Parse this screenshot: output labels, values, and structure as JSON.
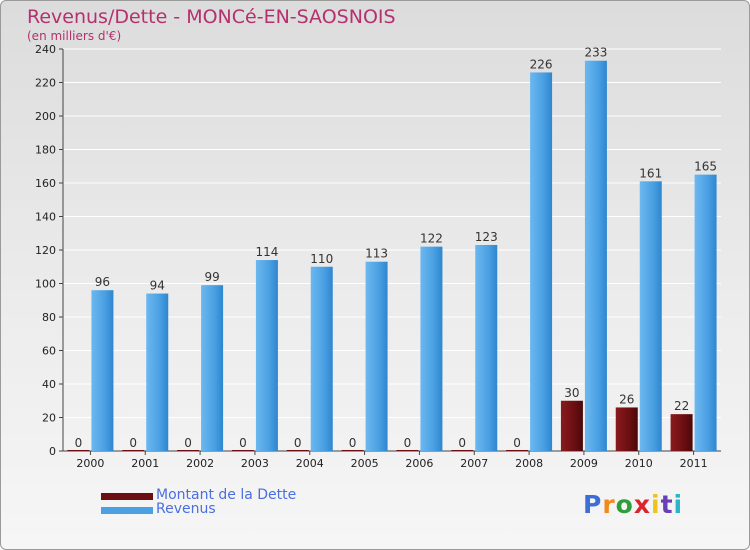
{
  "title": "Revenus/Dette - MONCé-EN-SAOSNOIS",
  "subtitle": "(en milliers d'€)",
  "legend": [
    {
      "label": "Montant de la Dette",
      "color": "#6b0f12"
    },
    {
      "label": "Revenus",
      "color": "#4aa0e2"
    }
  ],
  "logo": {
    "text": "Proxiti",
    "colors": [
      "#3b6fd6",
      "#f08a1c",
      "#2f9e3a",
      "#d9262c",
      "#f0c21c",
      "#6a3fb5",
      "#2bb5c9"
    ]
  },
  "colors": {
    "debt": "#6b0f12",
    "revenue": "#4aa0e2",
    "label_text": "#333333",
    "axis_text": "#222222",
    "grid": "#ffffff"
  },
  "chart_data": {
    "type": "bar",
    "categories": [
      "2000",
      "2001",
      "2002",
      "2003",
      "2004",
      "2005",
      "2006",
      "2007",
      "2008",
      "2009",
      "2010",
      "2011"
    ],
    "series": [
      {
        "name": "Montant de la Dette",
        "values": [
          0,
          0,
          0,
          0,
          0,
          0,
          0,
          0,
          0,
          30,
          26,
          22
        ]
      },
      {
        "name": "Revenus",
        "values": [
          96,
          94,
          99,
          114,
          110,
          113,
          122,
          123,
          226,
          233,
          161,
          165
        ]
      }
    ],
    "ylim": [
      0,
      240
    ],
    "yticks": [
      0,
      20,
      40,
      60,
      80,
      100,
      120,
      140,
      160,
      180,
      200,
      220,
      240
    ],
    "grid": true,
    "title": "Revenus/Dette - MONCé-EN-SAOSNOIS",
    "subtitle": "(en milliers d'€)"
  }
}
